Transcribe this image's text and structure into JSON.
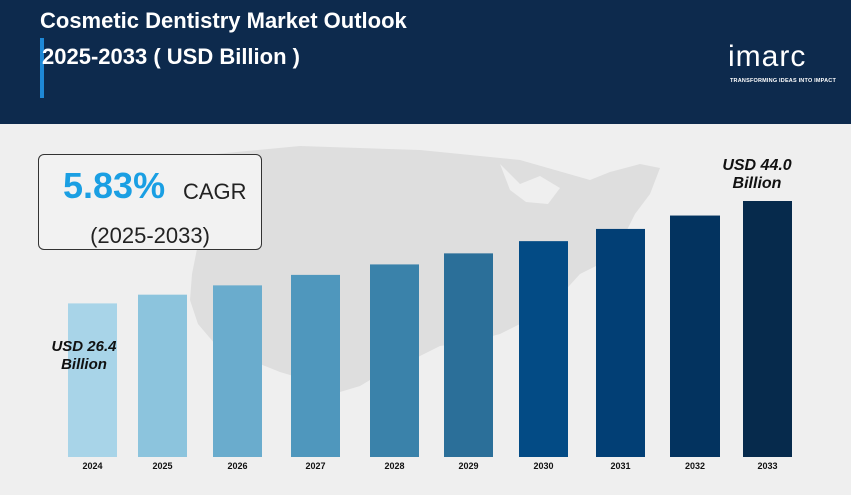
{
  "header": {
    "title_line1": "Cosmetic Dentistry Market Outlook",
    "title_line2": "2025-2033 ( USD Billion )",
    "background_color": "#0d2a4d"
  },
  "logo": {
    "wordmark": "imarc",
    "tagline": "TRANSFORMING IDEAS INTO IMPACT"
  },
  "cagr": {
    "value": "5.83%",
    "label": "CAGR",
    "period": "(2025-2033)"
  },
  "callouts": {
    "start": "USD 26.4 Billion",
    "end": "USD 44.0 Billion"
  },
  "chart_data": {
    "type": "bar",
    "categories": [
      "2024",
      "2025",
      "2026",
      "2027",
      "2028",
      "2029",
      "2030",
      "2031",
      "2032",
      "2033"
    ],
    "values": [
      26.4,
      27.9,
      29.5,
      31.3,
      33.1,
      35.0,
      37.1,
      39.2,
      41.5,
      44.0
    ],
    "title": "Cosmetic Dentistry Market Outlook 2025-2033 ( USD Billion )",
    "xlabel": "",
    "ylabel": "",
    "grid": false,
    "bar_colors": [
      "#a8d4e8",
      "#8cc4dd",
      "#6aaccd",
      "#4f97bd",
      "#3a82aa",
      "#2b6f99",
      "#034b85",
      "#023f75",
      "#03335f",
      "#062a4c"
    ]
  }
}
